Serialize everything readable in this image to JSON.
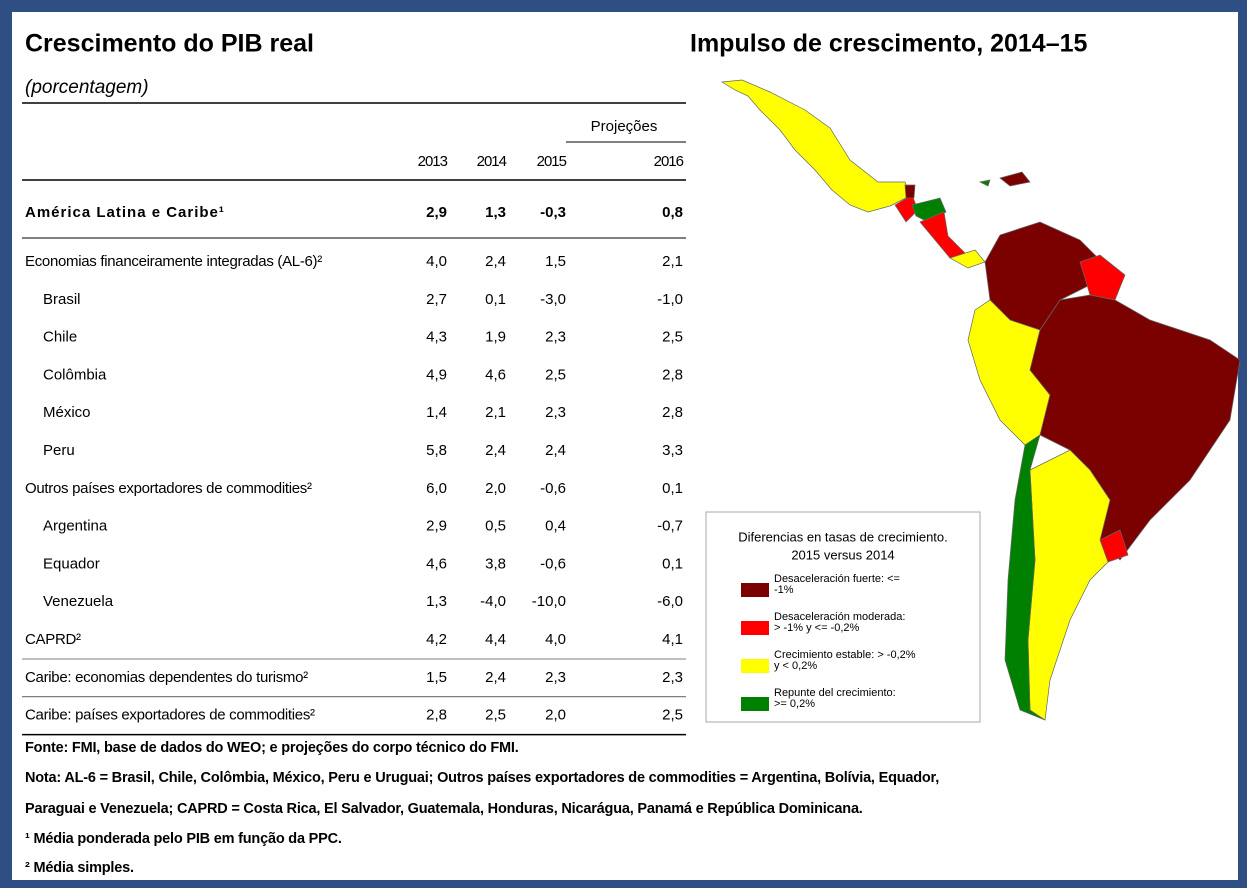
{
  "left": {
    "title": "Crescimento do PIB real",
    "subtitle": "(porcentagem)"
  },
  "table": {
    "projections": "Projeções",
    "columns": [
      "2013",
      "2014",
      "2015",
      "2016"
    ],
    "groups": [
      {
        "label": "América Latina e Caribe¹",
        "values": [
          "2,9",
          "1,3",
          "-0,3",
          "0,8"
        ],
        "rows": []
      },
      {
        "label": "Economias financeiramente integradas (AL-6)²",
        "values": [
          "4,0",
          "2,4",
          "1,5",
          "2,1"
        ],
        "rows": [
          {
            "label": "Brasil",
            "values": [
              "2,7",
              "0,1",
              "-3,0",
              "-1,0"
            ]
          },
          {
            "label": "Chile",
            "values": [
              "4,3",
              "1,9",
              "2,3",
              "2,5"
            ]
          },
          {
            "label": "Colômbia",
            "values": [
              "4,9",
              "4,6",
              "2,5",
              "2,8"
            ]
          },
          {
            "label": "México",
            "values": [
              "1,4",
              "2,1",
              "2,3",
              "2,8"
            ]
          },
          {
            "label": "Peru",
            "values": [
              "5,8",
              "2,4",
              "2,4",
              "3,3"
            ]
          }
        ]
      },
      {
        "label": "Outros países exportadores de commodities²",
        "values": [
          "6,0",
          "2,0",
          "-0,6",
          "0,1"
        ],
        "rows": [
          {
            "label": "Argentina",
            "values": [
              "2,9",
              "0,5",
              "0,4",
              "-0,7"
            ]
          },
          {
            "label": "Equador",
            "values": [
              "4,6",
              "3,8",
              "-0,6",
              "0,1"
            ]
          },
          {
            "label": "Venezuela",
            "values": [
              "1,3",
              "-4,0",
              "-10,0",
              "-6,0"
            ]
          }
        ]
      },
      {
        "label": "CAPRD²",
        "values": [
          "4,2",
          "4,4",
          "4,0",
          "4,1"
        ],
        "rows": []
      },
      {
        "label": "Caribe: economias dependentes do turismo²",
        "values": [
          "1,5",
          "2,4",
          "2,3",
          "2,3"
        ],
        "rows": []
      },
      {
        "label": "Caribe: países exportadores de commodities²",
        "values": [
          "2,8",
          "2,5",
          "2,0",
          "2,5"
        ],
        "rows": []
      }
    ]
  },
  "map": {
    "title": "Impulso de crescimento,  2014–15",
    "legend": {
      "title": [
        "Diferencias en tasas de crecimiento.",
        "2015 versus 2014"
      ],
      "items": [
        {
          "color": "#7b0000",
          "label": [
            "Desaceleración fuerte: <=",
            "-1%"
          ]
        },
        {
          "color": "#ff0000",
          "label": [
            "Desaceleración moderada:",
            "> -1% y <= -0,2%"
          ]
        },
        {
          "color": "#ffff00",
          "label": [
            "Crecimiento estable: > -0,2%",
            "y < 0,2%"
          ]
        },
        {
          "color": "#008000",
          "label": [
            "Repunte del crecimiento:",
            ">= 0,2%"
          ]
        }
      ]
    }
  },
  "notes": [
    "Fonte: FMI, base de dados do WEO; e projeções do corpo técnico do FMI.",
    "Nota: AL-6 = Brasil, Chile, Colômbia, México, Peru e Uruguai; Outros países exportadores de commodities = Argentina, Bolívia, Equador,",
    "Paraguai e Venezuela; CAPRD = Costa Rica, El Salvador, Guatemala, Honduras, Nicarágua, Panamá e República Dominicana.",
    "¹ Média ponderada pelo PIB em função da PPC.",
    "² Média simples."
  ]
}
